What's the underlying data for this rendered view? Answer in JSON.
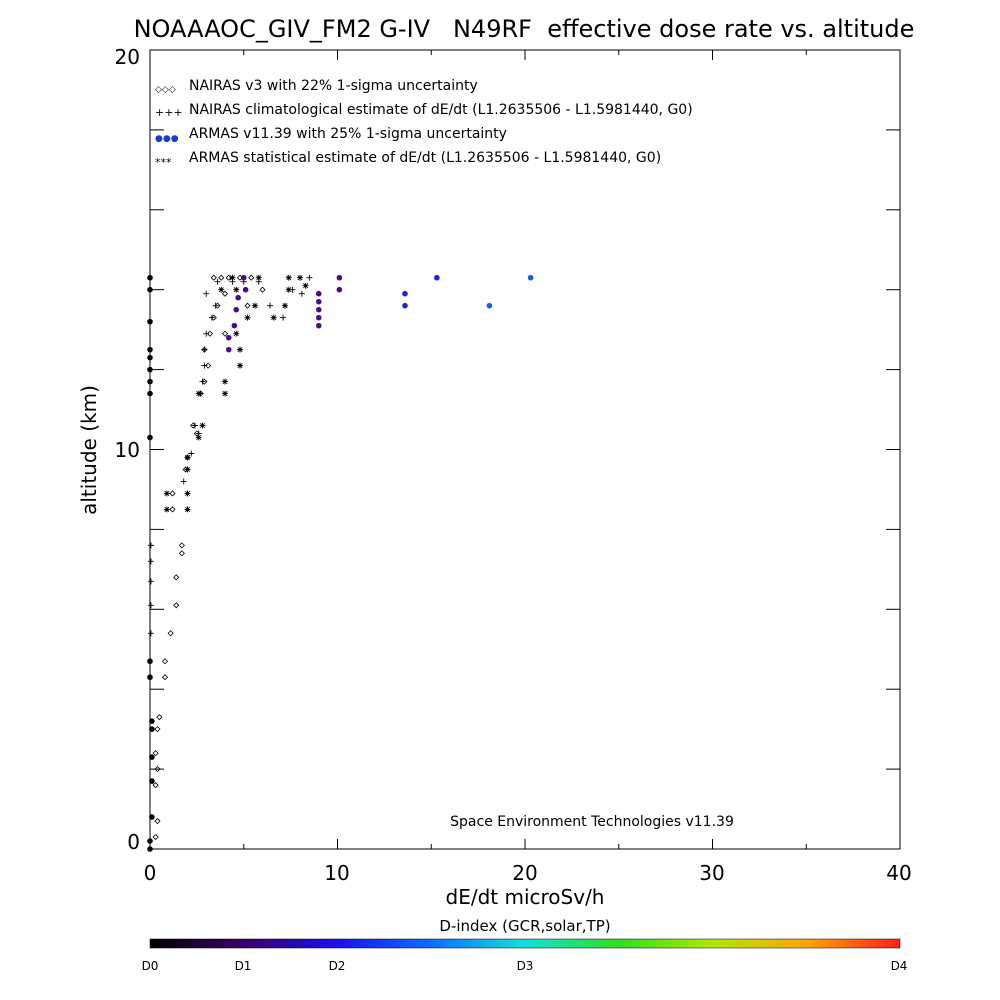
{
  "chart_data": {
    "type": "scatter",
    "title": "NOAAAOC_GIV_FM2 G-IV   N49RF  effective dose rate vs. altitude",
    "xlabel": "dE/dt microSv/h",
    "ylabel": "altitude (km)",
    "xlim": [
      0,
      40
    ],
    "ylim": [
      0,
      20
    ],
    "x_ticks": [
      "0",
      "10",
      "20",
      "30",
      "40"
    ],
    "y_ticks": [
      "0",
      "10",
      "20"
    ],
    "grid": false,
    "legend_position": "top-left",
    "legend": [
      {
        "symbol": "◇◇◇",
        "label": "NAIRAS v3 with 22% 1-sigma uncertainty"
      },
      {
        "symbol": "+++",
        "label": "NAIRAS climatological estimate of dE/dt (L1.2635506 - L1.5981440, G0)"
      },
      {
        "symbol": "●●●",
        "label": "ARMAS v11.39 with 25% 1-sigma uncertainty"
      },
      {
        "symbol": "***",
        "label": "ARMAS statistical estimate of dE/dt (L1.2635506 - L1.5981440, G0)"
      }
    ],
    "credit": "Space Environment Technologies v11.39",
    "colorbar": {
      "title": "D-index (GCR,solar,TP)",
      "labels": [
        "D0",
        "D1",
        "D2",
        "D3",
        "D4"
      ]
    },
    "series": [
      {
        "name": "NAIRAS v3 with 22% 1-sigma uncertainty",
        "marker": "diamond",
        "points": [
          [
            0.3,
            0.3
          ],
          [
            0.4,
            0.7
          ],
          [
            0.3,
            1.6
          ],
          [
            0.4,
            2.0
          ],
          [
            0.3,
            2.4
          ],
          [
            0.4,
            3.0
          ],
          [
            0.5,
            3.3
          ],
          [
            0.8,
            4.3
          ],
          [
            0.8,
            4.7
          ],
          [
            1.1,
            5.4
          ],
          [
            1.4,
            6.1
          ],
          [
            1.4,
            6.8
          ],
          [
            1.7,
            7.4
          ],
          [
            1.7,
            7.6
          ],
          [
            1.2,
            8.5
          ],
          [
            1.2,
            8.9
          ],
          [
            1.9,
            9.5
          ],
          [
            2.0,
            9.8
          ],
          [
            2.5,
            10.4
          ],
          [
            2.3,
            10.6
          ],
          [
            2.7,
            11.4
          ],
          [
            2.9,
            11.7
          ],
          [
            3.1,
            12.1
          ],
          [
            2.9,
            12.5
          ],
          [
            3.2,
            12.9
          ],
          [
            3.4,
            13.3
          ],
          [
            3.6,
            13.6
          ],
          [
            4.0,
            13.9
          ],
          [
            3.4,
            14.3
          ],
          [
            3.8,
            14.3
          ],
          [
            4.2,
            14.3
          ],
          [
            4.8,
            14.3
          ],
          [
            5.4,
            14.3
          ],
          [
            6.0,
            14.0
          ],
          [
            5.2,
            13.6
          ],
          [
            4.0,
            12.9
          ]
        ]
      },
      {
        "name": "NAIRAS climatological estimate of dE/dt",
        "marker": "plus",
        "points": [
          [
            0.05,
            7.6
          ],
          [
            0.05,
            7.2
          ],
          [
            0.05,
            6.7
          ],
          [
            0.05,
            6.1
          ],
          [
            0.05,
            5.4
          ],
          [
            1.8,
            9.2
          ],
          [
            2.0,
            9.5
          ],
          [
            2.2,
            9.9
          ],
          [
            2.6,
            10.4
          ],
          [
            2.4,
            10.6
          ],
          [
            2.7,
            11.4
          ],
          [
            2.8,
            11.7
          ],
          [
            2.9,
            12.1
          ],
          [
            2.9,
            12.5
          ],
          [
            3.0,
            12.9
          ],
          [
            3.3,
            13.3
          ],
          [
            3.5,
            13.6
          ],
          [
            3.0,
            13.9
          ],
          [
            3.6,
            14.2
          ],
          [
            4.4,
            14.2
          ],
          [
            5.0,
            14.2
          ],
          [
            5.8,
            14.2
          ],
          [
            6.4,
            13.6
          ],
          [
            7.1,
            13.3
          ],
          [
            7.6,
            14.0
          ],
          [
            8.1,
            13.9
          ],
          [
            8.5,
            14.3
          ]
        ]
      },
      {
        "name": "ARMAS v11.39 with 25% 1-sigma uncertainty",
        "marker": "dot",
        "points": [
          [
            0.0,
            0.0
          ],
          [
            0.0,
            0.2
          ],
          [
            0.1,
            0.8
          ],
          [
            0.1,
            1.7
          ],
          [
            0.1,
            2.3
          ],
          [
            0.1,
            3.0
          ],
          [
            0.1,
            3.2
          ],
          [
            0.0,
            4.3
          ],
          [
            0.0,
            4.7
          ],
          [
            0.0,
            10.3
          ],
          [
            0.0,
            11.4
          ],
          [
            0.0,
            11.7
          ],
          [
            0.0,
            12.0
          ],
          [
            0.0,
            12.3
          ],
          [
            0.0,
            12.5
          ],
          [
            0.0,
            13.2
          ],
          [
            0.0,
            14.0
          ],
          [
            0.0,
            14.3
          ],
          [
            4.2,
            12.5
          ],
          [
            4.2,
            12.8
          ],
          [
            4.5,
            13.1
          ],
          [
            4.6,
            13.5
          ],
          [
            4.7,
            13.8
          ],
          [
            5.1,
            14.0
          ],
          [
            5.0,
            14.3
          ],
          [
            9.0,
            13.1
          ],
          [
            9.0,
            13.3
          ],
          [
            9.0,
            13.5
          ],
          [
            9.0,
            13.7
          ],
          [
            9.0,
            13.9
          ],
          [
            10.1,
            14.0
          ],
          [
            10.1,
            14.3
          ],
          [
            13.6,
            13.6
          ],
          [
            13.6,
            13.9
          ],
          [
            15.3,
            14.3
          ],
          [
            18.1,
            13.6
          ],
          [
            20.3,
            14.3
          ]
        ]
      },
      {
        "name": "ARMAS statistical estimate of dE/dt",
        "marker": "asterisk",
        "points": [
          [
            0.9,
            8.5
          ],
          [
            0.9,
            8.9
          ],
          [
            2.0,
            8.5
          ],
          [
            2.0,
            8.9
          ],
          [
            2.0,
            9.5
          ],
          [
            2.0,
            9.8
          ],
          [
            2.6,
            10.3
          ],
          [
            2.8,
            10.6
          ],
          [
            2.6,
            11.4
          ],
          [
            4.0,
            11.4
          ],
          [
            4.0,
            11.7
          ],
          [
            4.8,
            12.1
          ],
          [
            4.8,
            12.5
          ],
          [
            4.6,
            12.9
          ],
          [
            5.2,
            13.3
          ],
          [
            5.6,
            13.6
          ],
          [
            3.8,
            14.0
          ],
          [
            4.4,
            14.3
          ],
          [
            5.8,
            14.3
          ],
          [
            6.6,
            13.3
          ],
          [
            7.2,
            13.6
          ],
          [
            7.4,
            14.0
          ],
          [
            7.4,
            14.3
          ],
          [
            8.0,
            14.3
          ],
          [
            8.3,
            14.1
          ],
          [
            4.6,
            14.0
          ]
        ]
      }
    ]
  }
}
